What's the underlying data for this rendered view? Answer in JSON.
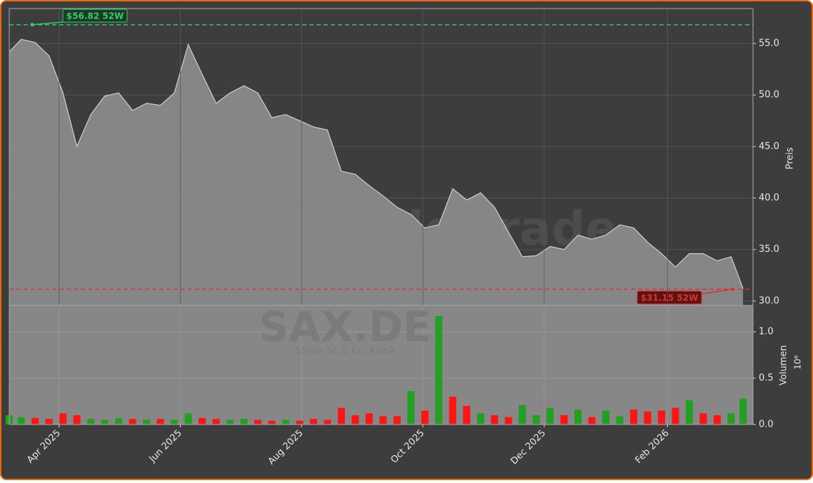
{
  "chart_data": [
    {
      "type": "area",
      "watermark": "forexsignale.trade",
      "ylabel": "Preis",
      "color": "#8a8a8a",
      "line_color": "#cfcfcf",
      "x": [
        "2025-03-07",
        "2025-03-13",
        "2025-03-20",
        "2025-03-27",
        "2025-04-03",
        "2025-04-10",
        "2025-04-17",
        "2025-04-24",
        "2025-05-01",
        "2025-05-08",
        "2025-05-15",
        "2025-05-22",
        "2025-05-29",
        "2025-06-05",
        "2025-06-12",
        "2025-06-19",
        "2025-06-26",
        "2025-07-03",
        "2025-07-10",
        "2025-07-17",
        "2025-07-24",
        "2025-07-31",
        "2025-08-07",
        "2025-08-14",
        "2025-08-21",
        "2025-08-28",
        "2025-09-04",
        "2025-09-11",
        "2025-09-18",
        "2025-09-25",
        "2025-10-02",
        "2025-10-09",
        "2025-10-16",
        "2025-10-23",
        "2025-10-30",
        "2025-11-06",
        "2025-11-13",
        "2025-11-20",
        "2025-11-27",
        "2025-12-04",
        "2025-12-11",
        "2025-12-18",
        "2025-12-25",
        "2026-01-01",
        "2026-01-08",
        "2026-01-15",
        "2026-01-22",
        "2026-01-29",
        "2026-02-05",
        "2026-02-12",
        "2026-02-19",
        "2026-02-26",
        "2026-03-05",
        "2026-03-11"
      ],
      "values": [
        54.2,
        55.4,
        55.1,
        53.8,
        50.2,
        45.0,
        48.1,
        49.9,
        50.2,
        48.5,
        49.2,
        49.0,
        50.2,
        54.9,
        52.0,
        49.2,
        50.2,
        50.9,
        50.2,
        47.8,
        48.1,
        47.5,
        46.9,
        46.6,
        42.6,
        42.3,
        41.2,
        40.2,
        39.1,
        38.4,
        37.1,
        37.4,
        40.9,
        39.8,
        40.5,
        39.1,
        36.7,
        34.3,
        34.4,
        35.3,
        35.0,
        36.4,
        36.0,
        36.4,
        37.4,
        37.1,
        35.7,
        34.6,
        33.3,
        34.6,
        34.6,
        33.9,
        34.3,
        31.2
      ],
      "xlim": [
        "2025-03-07",
        "2026-03-16"
      ],
      "ylim": [
        29.58,
        58.39
      ],
      "yticks": [
        {
          "value": 30,
          "label": "30.0"
        },
        {
          "value": 35,
          "label": "35.0"
        },
        {
          "value": 40,
          "label": "40.0"
        },
        {
          "value": 45,
          "label": "45.0"
        },
        {
          "value": 50,
          "label": "50.0"
        },
        {
          "value": 55,
          "label": "55.0"
        }
      ],
      "grid": true,
      "annotations": [
        {
          "text": "$56.82 52W",
          "value": 56.82,
          "color": "#2ecc71"
        },
        {
          "text": "$31.15 52W",
          "value": 31.15,
          "color": "#e03030"
        }
      ]
    },
    {
      "type": "bar",
      "title": "SAX.DE",
      "subtitle": "Ströer SE & Co. KGaA",
      "ylabel": "Volumen",
      "offset_label": "10⁶",
      "x": [
        "2025-03-07",
        "2025-03-13",
        "2025-03-20",
        "2025-03-27",
        "2025-04-03",
        "2025-04-10",
        "2025-04-17",
        "2025-04-24",
        "2025-05-01",
        "2025-05-08",
        "2025-05-15",
        "2025-05-22",
        "2025-05-29",
        "2025-06-05",
        "2025-06-12",
        "2025-06-19",
        "2025-06-26",
        "2025-07-03",
        "2025-07-10",
        "2025-07-17",
        "2025-07-24",
        "2025-07-31",
        "2025-08-07",
        "2025-08-14",
        "2025-08-21",
        "2025-08-28",
        "2025-09-04",
        "2025-09-11",
        "2025-09-18",
        "2025-09-25",
        "2025-10-02",
        "2025-10-09",
        "2025-10-16",
        "2025-10-23",
        "2025-10-30",
        "2025-11-06",
        "2025-11-13",
        "2025-11-20",
        "2025-11-27",
        "2025-12-04",
        "2025-12-11",
        "2025-12-18",
        "2025-12-25",
        "2026-01-01",
        "2026-01-08",
        "2026-01-15",
        "2026-01-22",
        "2026-01-29",
        "2026-02-05",
        "2026-02-12",
        "2026-02-19",
        "2026-02-26",
        "2026-03-05",
        "2026-03-11"
      ],
      "values": [
        0.1,
        0.08,
        0.07,
        0.06,
        0.12,
        0.1,
        0.06,
        0.05,
        0.07,
        0.06,
        0.05,
        0.06,
        0.05,
        0.12,
        0.07,
        0.06,
        0.05,
        0.06,
        0.05,
        0.04,
        0.05,
        0.04,
        0.06,
        0.05,
        0.18,
        0.1,
        0.12,
        0.09,
        0.09,
        0.36,
        0.15,
        1.17,
        0.3,
        0.2,
        0.12,
        0.1,
        0.08,
        0.21,
        0.1,
        0.18,
        0.1,
        0.16,
        0.08,
        0.15,
        0.09,
        0.16,
        0.14,
        0.15,
        0.18,
        0.26,
        0.12,
        0.1,
        0.12,
        0.28
      ],
      "colors": [
        "#22a022",
        "#22a022",
        "#ff1414",
        "#ff1414",
        "#ff1414",
        "#ff1414",
        "#22a022",
        "#22a022",
        "#22a022",
        "#ff1414",
        "#22a022",
        "#ff1414",
        "#22a022",
        "#22a022",
        "#ff1414",
        "#ff1414",
        "#22a022",
        "#22a022",
        "#ff1414",
        "#ff1414",
        "#22a022",
        "#ff1414",
        "#ff1414",
        "#ff1414",
        "#ff1414",
        "#ff1414",
        "#ff1414",
        "#ff1414",
        "#ff1414",
        "#22a022",
        "#ff1414",
        "#22a022",
        "#ff1414",
        "#ff1414",
        "#22a022",
        "#ff1414",
        "#ff1414",
        "#22a022",
        "#22a022",
        "#22a022",
        "#ff1414",
        "#22a022",
        "#ff1414",
        "#22a022",
        "#22a022",
        "#ff1414",
        "#ff1414",
        "#ff1414",
        "#ff1414",
        "#22a022",
        "#ff1414",
        "#ff1414",
        "#22a022",
        "#22a022"
      ],
      "xlim": [
        "2025-03-07",
        "2026-03-16"
      ],
      "ylim": [
        0,
        1.285
      ],
      "yticks": [
        {
          "value": 0,
          "label": "0.0"
        },
        0.5,
        {
          "value": 1,
          "label": "1.0"
        }
      ],
      "xticks": [
        {
          "value": "2025-04-01",
          "label": "Apr 2025"
        },
        {
          "value": "2025-06-01",
          "label": "Jun 2025"
        },
        {
          "value": "2025-08-01",
          "label": "Aug 2025"
        },
        {
          "value": "2025-10-01",
          "label": "Oct 2025"
        },
        {
          "value": "2025-12-01",
          "label": "Dec 2025"
        },
        {
          "value": "2026-02-01",
          "label": "Feb 2026"
        }
      ],
      "grid": true
    }
  ]
}
